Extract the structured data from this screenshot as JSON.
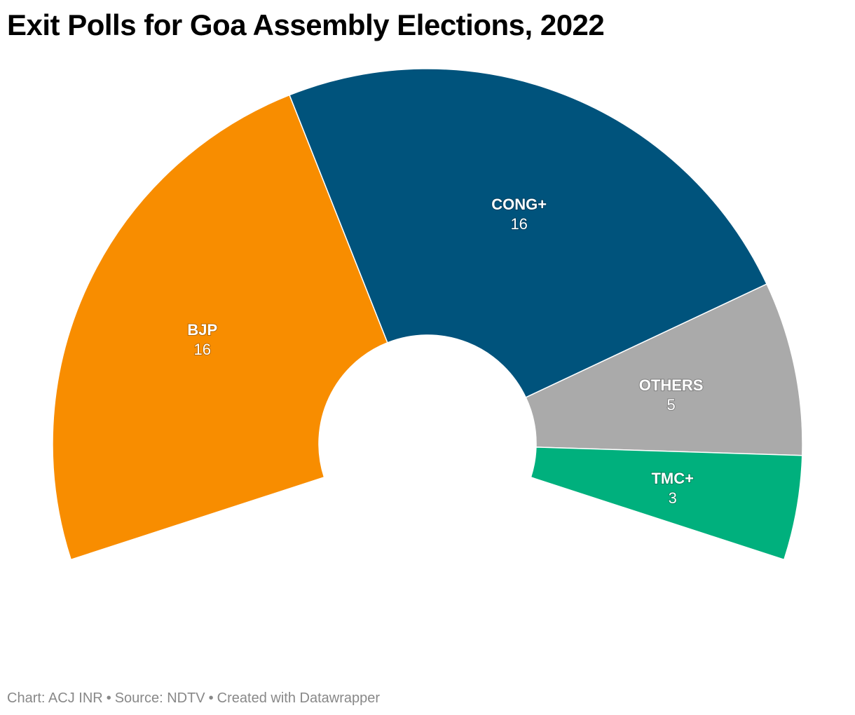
{
  "chart_data": {
    "type": "pie",
    "variant": "semicircle-parliament",
    "title": "Exit Polls for Goa Assembly Elections, 2022",
    "total_angle_degrees": 216,
    "categories": [
      "BJP",
      "CONG+",
      "OTHERS",
      "TMC+"
    ],
    "values": [
      16,
      16,
      5,
      3
    ],
    "colors": [
      "#f88d00",
      "#00537c",
      "#aaaaaa",
      "#00b07d"
    ],
    "legend": "none (labels on slices)"
  },
  "footer": {
    "chart_credit": "Chart: ACJ INR",
    "source": "Source: NDTV",
    "created_with": "Created with Datawrapper"
  }
}
